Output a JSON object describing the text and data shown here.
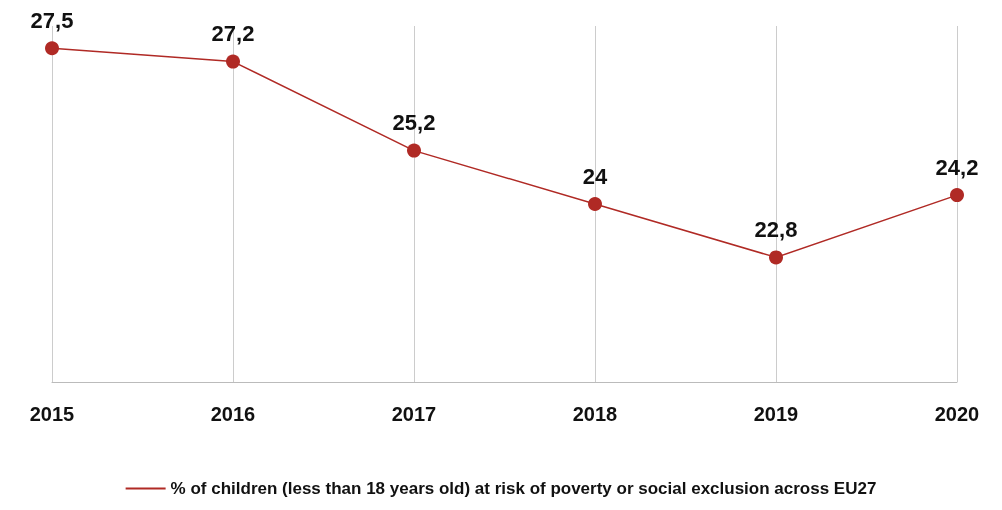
{
  "chart_data": {
    "type": "line",
    "categories": [
      "2015",
      "2016",
      "2017",
      "2018",
      "2019",
      "2020"
    ],
    "series": [
      {
        "name": "% of children (less than 18 years old) at risk of poverty or social exclusion across EU27",
        "color": "#b02a25",
        "values": [
          27.5,
          27.2,
          25.2,
          24,
          22.8,
          24.2
        ],
        "value_labels": [
          "27,5",
          "27,2",
          "25,2",
          "24",
          "22,8",
          "24,2"
        ]
      }
    ],
    "ylim": [
      20,
      28
    ],
    "grid": "x",
    "legend": "bottom",
    "marker": "circle",
    "line_style": "solid",
    "tick_labels": "x"
  }
}
